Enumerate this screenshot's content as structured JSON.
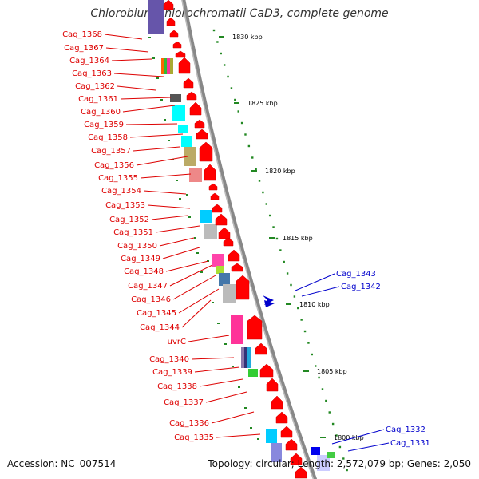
{
  "title": "Chlorobium chlorochromatii CaD3, complete genome",
  "footer": {
    "accession": "Accession: NC_007514",
    "summary": "Topology: circular; Length: 2,572,079 bp; Genes: 2,050"
  },
  "colors": {
    "reverse_strand_label": "#dd0000",
    "forward_strand_label": "#0000cc",
    "backbone": "#888888",
    "tick": "#228822",
    "gene_arrow": "#ff0000"
  },
  "ticks": [
    {
      "label": "1830 kbp"
    },
    {
      "label": "1825 kbp"
    },
    {
      "label": "1820 kbp"
    },
    {
      "label": "1815 kbp"
    },
    {
      "label": "1810 kbp"
    },
    {
      "label": "1805 kbp"
    },
    {
      "label": "1800 kbp"
    }
  ],
  "left_labels": [
    "Cag_1368",
    "Cag_1367",
    "Cag_1364",
    "Cag_1363",
    "Cag_1362",
    "Cag_1361",
    "Cag_1360",
    "Cag_1359",
    "Cag_1358",
    "Cag_1357",
    "Cag_1356",
    "Cag_1355",
    "Cag_1354",
    "Cag_1353",
    "Cag_1352",
    "Cag_1351",
    "Cag_1350",
    "Cag_1349",
    "Cag_1348",
    "Cag_1347",
    "Cag_1346",
    "Cag_1345",
    "Cag_1344",
    "uvrC",
    "Cag_1340",
    "Cag_1339",
    "Cag_1338",
    "Cag_1337",
    "Cag_1336",
    "Cag_1335"
  ],
  "right_labels": [
    "Cag_1343",
    "Cag_1342",
    "Cag_1332",
    "Cag_1331"
  ]
}
